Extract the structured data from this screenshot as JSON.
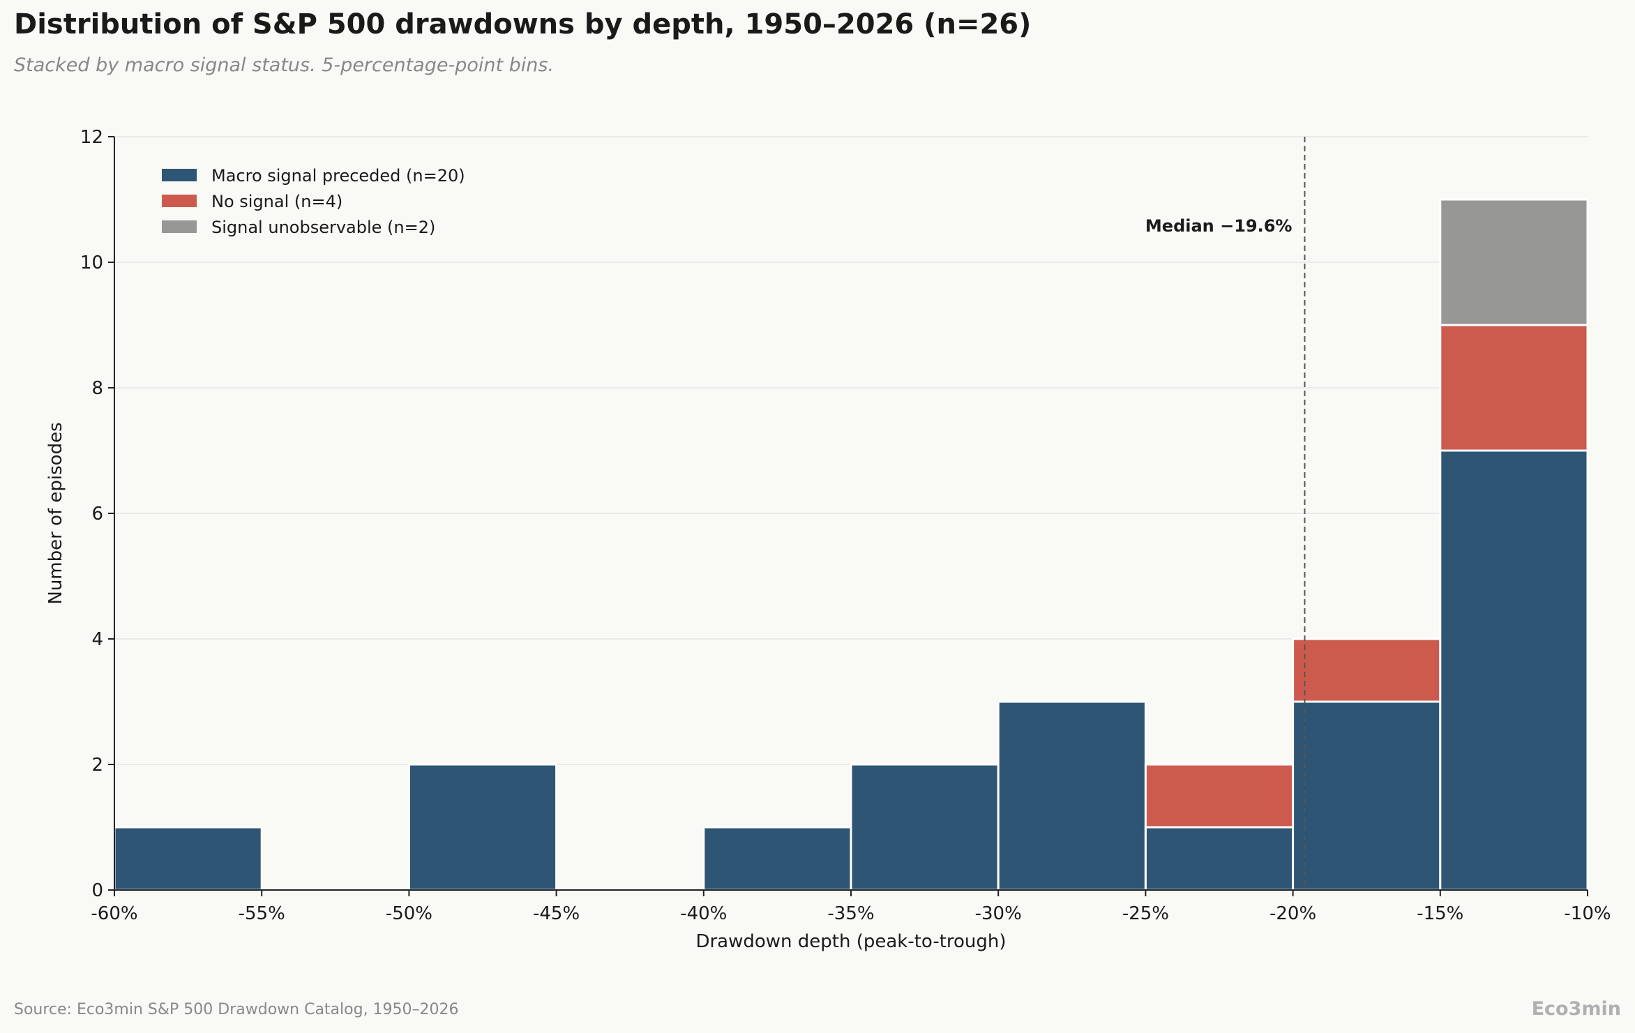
{
  "title": "Distribution of S&P 500 drawdowns by depth, 1950–2026 (n=26)",
  "subtitle": "Stacked by macro signal status. 5-percentage-point bins.",
  "source": "Source: Eco3min S&P 500 Drawdown Catalog, 1950–2026",
  "brand": "Eco3min",
  "colors": {
    "macro": "#2e5573",
    "no_signal": "#cc5b4e",
    "unobservable": "#979795",
    "grid": "#e2e2df",
    "axis": "#222222"
  },
  "chart_data": {
    "type": "bar",
    "stacked": true,
    "xlabel": "Drawdown depth (peak-to-trough)",
    "ylabel": "Number of episodes",
    "xlim": [
      -60,
      -10
    ],
    "ylim": [
      0,
      12
    ],
    "xticks": [
      -60,
      -55,
      -50,
      -45,
      -40,
      -35,
      -30,
      -25,
      -20,
      -15,
      -10
    ],
    "xtick_labels": [
      "-60%",
      "-55%",
      "-50%",
      "-45%",
      "-40%",
      "-35%",
      "-30%",
      "-25%",
      "-20%",
      "-15%",
      "-10%"
    ],
    "yticks": [
      0,
      2,
      4,
      6,
      8,
      10,
      12
    ],
    "bins": [
      [
        -60,
        -55
      ],
      [
        -55,
        -50
      ],
      [
        -50,
        -45
      ],
      [
        -45,
        -40
      ],
      [
        -40,
        -35
      ],
      [
        -35,
        -30
      ],
      [
        -30,
        -25
      ],
      [
        -25,
        -20
      ],
      [
        -20,
        -15
      ],
      [
        -15,
        -10
      ]
    ],
    "series": [
      {
        "name": "Macro signal preceded (n=20)",
        "key": "macro",
        "values": [
          1,
          0,
          2,
          0,
          1,
          2,
          3,
          1,
          3,
          7
        ]
      },
      {
        "name": "No signal (n=4)",
        "key": "no_signal",
        "values": [
          0,
          0,
          0,
          0,
          0,
          0,
          0,
          1,
          1,
          2
        ]
      },
      {
        "name": "Signal unobservable (n=2)",
        "key": "unobservable",
        "values": [
          0,
          0,
          0,
          0,
          0,
          0,
          0,
          0,
          0,
          2
        ]
      }
    ],
    "median": {
      "value": -19.6,
      "label": "Median  −19.6%"
    },
    "grid": "horizontal",
    "legend_position": "top-left"
  }
}
